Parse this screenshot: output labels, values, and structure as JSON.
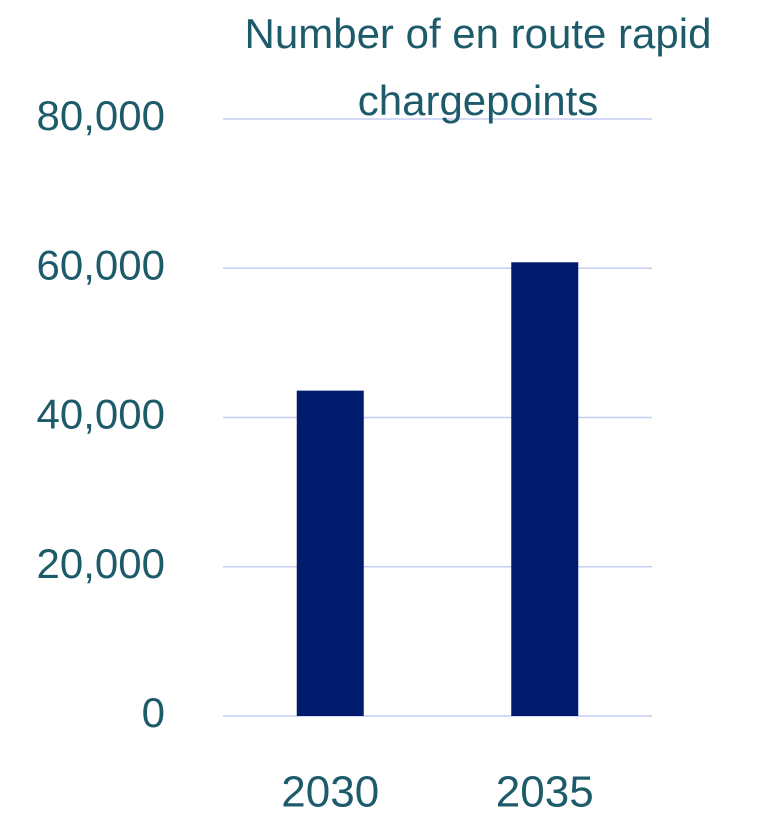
{
  "chart_data": {
    "type": "bar",
    "title": "Number of en route rapid chargepoints",
    "categories": [
      "2030",
      "2035"
    ],
    "values": [
      43600,
      60800
    ],
    "color": "#001a6e",
    "ylim": [
      0,
      80000
    ],
    "yticks": [
      0,
      {
        "value": 20000,
        "label": "20,000"
      },
      {
        "value": 40000,
        "label": "40,000"
      },
      {
        "value": 60000,
        "label": "60,000"
      },
      {
        "value": 80000,
        "label": "80,000"
      }
    ],
    "grid": true
  }
}
